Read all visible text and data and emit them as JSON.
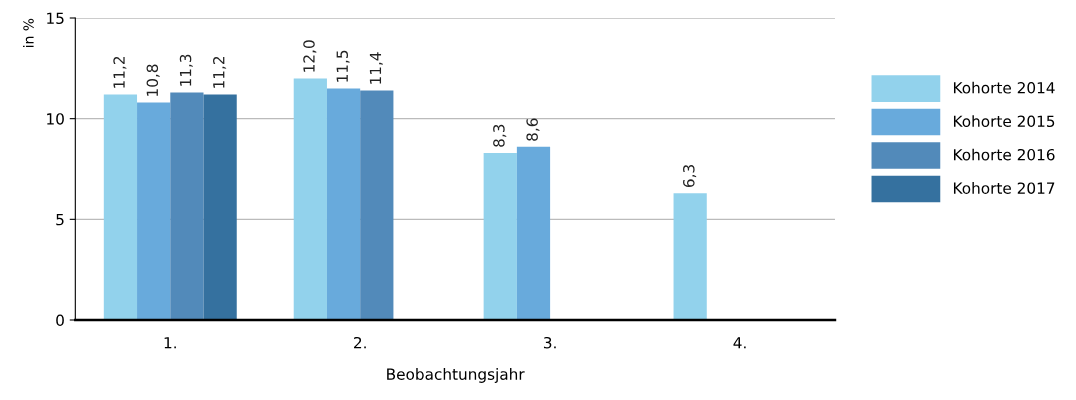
{
  "chart_data": {
    "type": "bar",
    "xlabel": "Beobachtungsjahr",
    "ylabel": "in %",
    "categories": [
      "1.",
      "2.",
      "3.",
      "4."
    ],
    "series": [
      {
        "name": "Kohorte 2014",
        "color": "#92d2ec",
        "values": [
          11.2,
          12.0,
          8.3,
          6.3
        ],
        "value_labels": [
          "11,2",
          "12,0",
          "8,3",
          "6,3"
        ]
      },
      {
        "name": "Kohorte 2015",
        "color": "#68aadc",
        "values": [
          10.8,
          11.5,
          8.6,
          null
        ],
        "value_labels": [
          "10,8",
          "11,5",
          "8,6",
          null
        ]
      },
      {
        "name": "Kohorte 2016",
        "color": "#528aba",
        "values": [
          11.3,
          11.4,
          null,
          null
        ],
        "value_labels": [
          "11,3",
          "11,4",
          null,
          null
        ]
      },
      {
        "name": "Kohorte 2017",
        "color": "#35719f",
        "values": [
          11.2,
          null,
          null,
          null
        ],
        "value_labels": [
          "11,2",
          null,
          null,
          null
        ]
      }
    ],
    "ylim": [
      0,
      15
    ],
    "yticks": [
      0,
      5,
      10,
      15
    ],
    "grid": "y",
    "legend": "right"
  }
}
